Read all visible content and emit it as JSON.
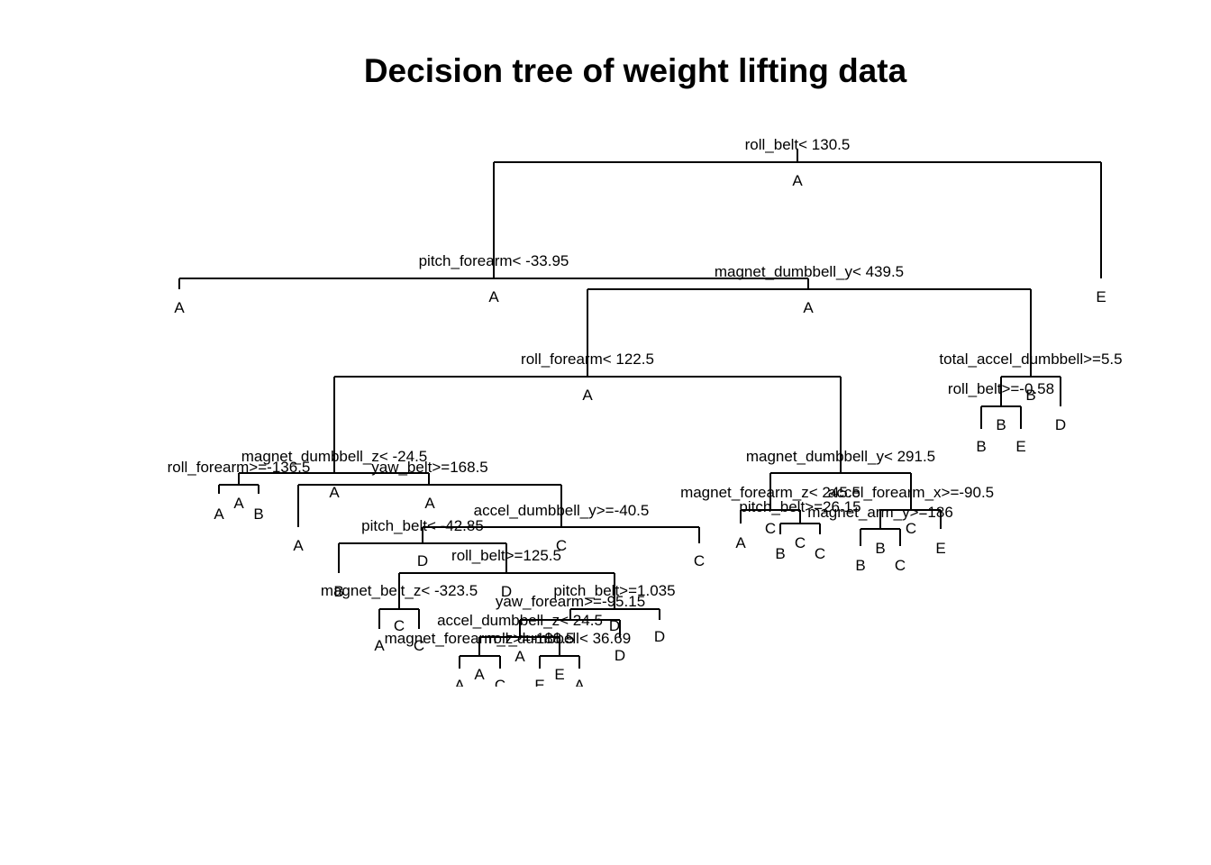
{
  "title": "Decision tree of weight lifting data",
  "splits": {
    "s1": "roll_belt< 130.5",
    "s2": "pitch_forearm< -33.95",
    "s3": "magnet_dumbbell_y< 439.5",
    "s4": "roll_forearm< 122.5",
    "s5": "total_accel_dumbbell>=5.5",
    "s6": "roll_belt>=-0.58",
    "s7": "magnet_dumbbell_z< -24.5",
    "s8": "roll_forearm>=-136.5",
    "s9": "yaw_belt>=168.5",
    "s10": "accel_dumbbell_y>=-40.5",
    "s11": "pitch_belt< -42.85",
    "s12": "roll_belt>=125.5",
    "s13": "magnet_belt_z< -323.5",
    "s14": "pitch_belt>=1.035",
    "s15": "yaw_forearm>=-95.15",
    "s16": "accel_dumbbell_z< 24.5",
    "s17": "magnet_forearm_z>=-188.5",
    "s18": "roll_dumbbell< 36.69",
    "s19": "magnet_dumbbell_y< 291.5",
    "s20": "magnet_forearm_z< 245.5",
    "s21": "accel_forearm_x>=-90.5",
    "s22": "pitch_belt>=26.15",
    "s23": "magnet_arm_y>=186"
  },
  "node_classes": {
    "n1": "A",
    "n2": "A",
    "n3": "A",
    "n4": "A",
    "n5": "B",
    "n6": "B",
    "n7": "A",
    "n8": "A",
    "n9": "A",
    "n10": "C",
    "n11": "D",
    "n12": "D",
    "n13": "C",
    "n14": "A",
    "n15": "C",
    "n16": "C",
    "n17": "C",
    "n18": "D",
    "n19": "A",
    "n20": "E"
  },
  "leaves": {
    "l1": "A",
    "l2": "E",
    "l3": "B",
    "l4": "E",
    "l5": "D",
    "l6": "A",
    "l7": "B",
    "l8": "A",
    "l9": "C",
    "l10": "B",
    "l11": "A",
    "l12": "C",
    "l13": "D",
    "l14": "A",
    "l15": "C",
    "l16": "A",
    "l17": "C",
    "l18": "B",
    "l19": "E",
    "l20": "D",
    "l21": "A",
    "l22": "B",
    "l23": "C",
    "l24": "B",
    "l25": "E",
    "l26": "D",
    "l27": "D"
  }
}
